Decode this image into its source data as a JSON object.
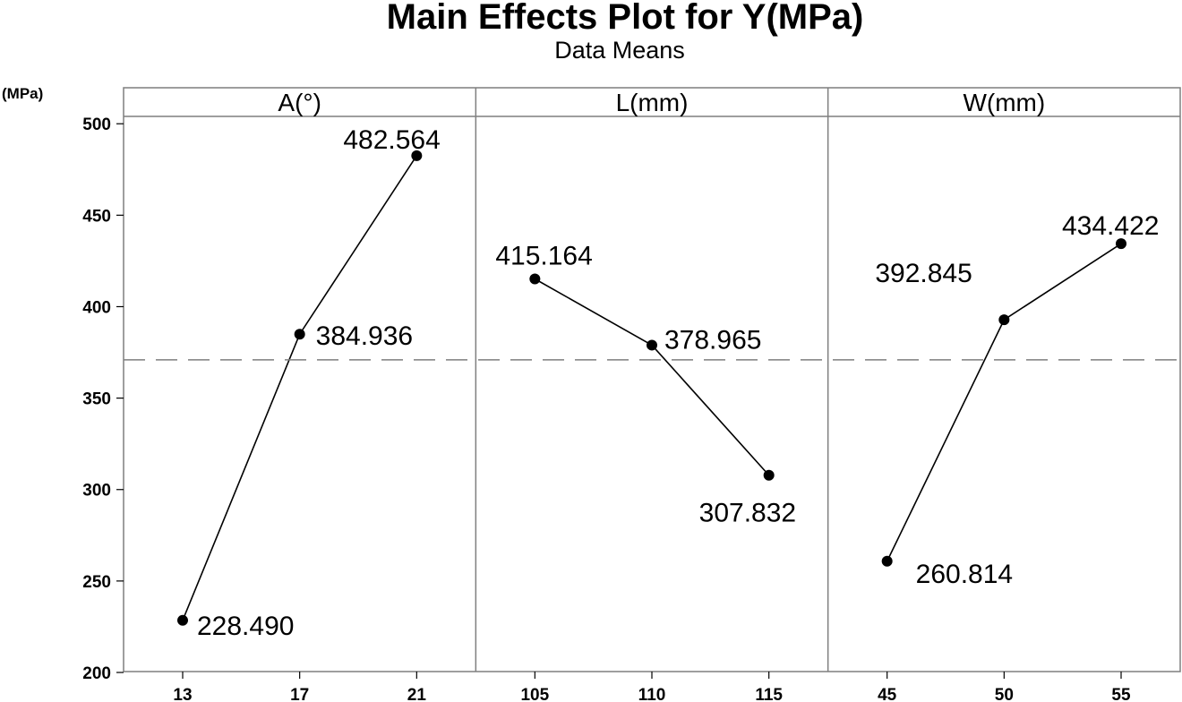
{
  "chart_data": {
    "type": "line",
    "title": "Main Effects Plot for Y(MPa)",
    "subtitle": "Data Means",
    "ylabel": "(MPa)",
    "ylim": [
      200,
      505
    ],
    "yticks": [
      200,
      250,
      300,
      350,
      400,
      450,
      500
    ],
    "overall_mean": 370.922,
    "panels": [
      {
        "factor": "A(°)",
        "categories": [
          "13",
          "17",
          "21"
        ],
        "values": [
          228.49,
          384.936,
          482.564
        ],
        "labels": [
          "228.490",
          "384.936",
          "482.564"
        ]
      },
      {
        "factor": "L(mm)",
        "categories": [
          "105",
          "110",
          "115"
        ],
        "values": [
          415.164,
          378.965,
          307.832
        ],
        "labels": [
          "415.164",
          "378.965",
          "307.832"
        ]
      },
      {
        "factor": "W(mm)",
        "categories": [
          "45",
          "50",
          "55"
        ],
        "values": [
          260.814,
          392.845,
          434.422
        ],
        "labels": [
          "260.814",
          "392.845",
          "434.422"
        ]
      }
    ]
  }
}
